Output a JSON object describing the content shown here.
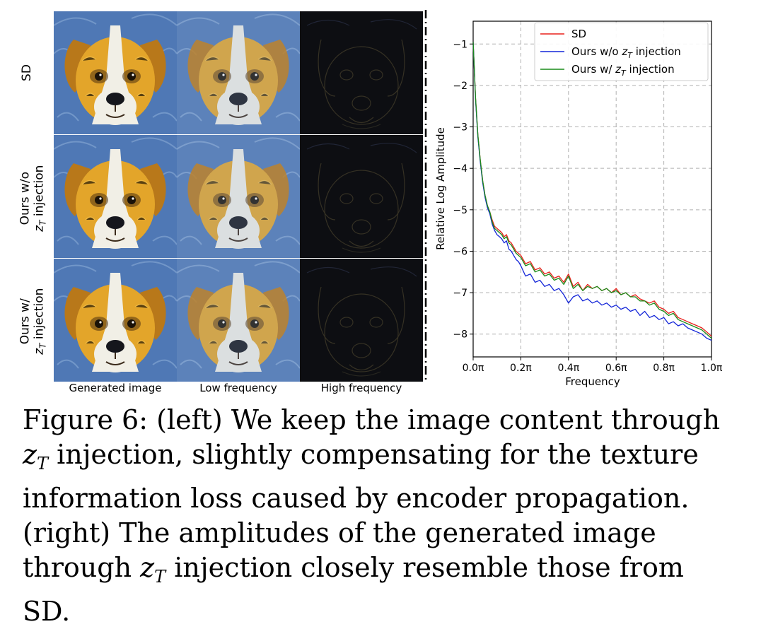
{
  "grid": {
    "row_labels": [
      {
        "line1": "SD",
        "line2": ""
      },
      {
        "line1": "Ours w/o",
        "line2": "z",
        "sub": "T",
        "tail": " injection"
      },
      {
        "line1": "Ours w/",
        "line2": "z",
        "sub": "T",
        "tail": " injection"
      }
    ],
    "col_labels": [
      "Generated image",
      "Low frequency",
      "High frequency"
    ]
  },
  "caption": {
    "prefix": "Figure 6: (left) We keep the image content through ",
    "math1": "z",
    "sub1": "T",
    "mid": " injection, slightly compensating for the texture information loss caused by encoder propagation. (right) The amplitudes of the generated image through ",
    "math2": "z",
    "sub2": "T",
    "suffix": " injection closely resemble those from SD."
  },
  "chart_data": {
    "type": "line",
    "xlabel": "Frequency",
    "ylabel": "Relative Log Amplitude",
    "xlim": [
      0,
      1
    ],
    "ylim": [
      -8.55,
      -0.45
    ],
    "xticks": [
      0,
      0.2,
      0.4,
      0.6,
      0.8,
      1.0
    ],
    "xtick_labels": [
      "0.0π",
      "0.2π",
      "0.4π",
      "0.6π",
      "0.8π",
      "1.0π"
    ],
    "yticks": [
      -1,
      -2,
      -3,
      -4,
      -5,
      -6,
      -7,
      -8
    ],
    "ytick_labels": [
      "−1",
      "−2",
      "−3",
      "−4",
      "−5",
      "−6",
      "−7",
      "−8"
    ],
    "grid": true,
    "legend": "top-right",
    "series": [
      {
        "name": "SD",
        "color": "#e8201b",
        "x": [
          0.0,
          0.01,
          0.02,
          0.03,
          0.04,
          0.05,
          0.06,
          0.07,
          0.08,
          0.09,
          0.1,
          0.11,
          0.12,
          0.13,
          0.14,
          0.15,
          0.16,
          0.17,
          0.18,
          0.19,
          0.2,
          0.22,
          0.24,
          0.26,
          0.28,
          0.3,
          0.32,
          0.34,
          0.36,
          0.38,
          0.4,
          0.42,
          0.44,
          0.46,
          0.48,
          0.5,
          0.52,
          0.54,
          0.56,
          0.58,
          0.6,
          0.62,
          0.64,
          0.66,
          0.68,
          0.7,
          0.72,
          0.74,
          0.76,
          0.78,
          0.8,
          0.82,
          0.84,
          0.86,
          0.88,
          0.9,
          0.92,
          0.94,
          0.96,
          0.98,
          1.0
        ],
        "y": [
          -0.95,
          -2.3,
          -3.2,
          -3.8,
          -4.3,
          -4.65,
          -4.9,
          -5.05,
          -5.25,
          -5.4,
          -5.45,
          -5.5,
          -5.55,
          -5.65,
          -5.6,
          -5.75,
          -5.8,
          -5.9,
          -6.0,
          -6.05,
          -6.1,
          -6.3,
          -6.25,
          -6.45,
          -6.4,
          -6.55,
          -6.5,
          -6.65,
          -6.6,
          -6.75,
          -6.55,
          -6.85,
          -6.75,
          -6.95,
          -6.8,
          -6.9,
          -6.85,
          -6.95,
          -6.9,
          -7.0,
          -6.9,
          -7.05,
          -7.0,
          -7.1,
          -7.05,
          -7.15,
          -7.2,
          -7.25,
          -7.2,
          -7.35,
          -7.4,
          -7.5,
          -7.45,
          -7.6,
          -7.65,
          -7.7,
          -7.75,
          -7.8,
          -7.85,
          -7.95,
          -8.05
        ]
      },
      {
        "name": "Ours w/o z_T injection",
        "label_main": "Ours w/o ",
        "label_math": "z",
        "label_sub": "T",
        "label_tail": " injection",
        "color": "#1426d8",
        "x": [
          0.0,
          0.01,
          0.02,
          0.03,
          0.04,
          0.05,
          0.06,
          0.07,
          0.08,
          0.09,
          0.1,
          0.11,
          0.12,
          0.13,
          0.14,
          0.15,
          0.16,
          0.17,
          0.18,
          0.19,
          0.2,
          0.22,
          0.24,
          0.26,
          0.28,
          0.3,
          0.32,
          0.34,
          0.36,
          0.38,
          0.4,
          0.42,
          0.44,
          0.46,
          0.48,
          0.5,
          0.52,
          0.54,
          0.56,
          0.58,
          0.6,
          0.62,
          0.64,
          0.66,
          0.68,
          0.7,
          0.72,
          0.74,
          0.76,
          0.78,
          0.8,
          0.82,
          0.84,
          0.86,
          0.88,
          0.9,
          0.92,
          0.94,
          0.96,
          0.98,
          1.0
        ],
        "y": [
          -0.95,
          -2.35,
          -3.25,
          -3.85,
          -4.35,
          -4.7,
          -4.95,
          -5.1,
          -5.35,
          -5.5,
          -5.6,
          -5.65,
          -5.7,
          -5.8,
          -5.75,
          -5.95,
          -6.0,
          -6.1,
          -6.2,
          -6.25,
          -6.35,
          -6.6,
          -6.55,
          -6.75,
          -6.7,
          -6.85,
          -6.8,
          -6.95,
          -6.9,
          -7.05,
          -7.25,
          -7.1,
          -7.05,
          -7.2,
          -7.15,
          -7.25,
          -7.2,
          -7.3,
          -7.25,
          -7.35,
          -7.3,
          -7.4,
          -7.35,
          -7.45,
          -7.4,
          -7.55,
          -7.45,
          -7.6,
          -7.55,
          -7.65,
          -7.6,
          -7.75,
          -7.7,
          -7.8,
          -7.75,
          -7.85,
          -7.9,
          -7.95,
          -8.0,
          -8.1,
          -8.15
        ]
      },
      {
        "name": "Ours w/ z_T injection",
        "label_main": "Ours w/ ",
        "label_math": "z",
        "label_sub": "T",
        "label_tail": " injection",
        "color": "#198c19",
        "x": [
          0.0,
          0.01,
          0.02,
          0.03,
          0.04,
          0.05,
          0.06,
          0.07,
          0.08,
          0.09,
          0.1,
          0.11,
          0.12,
          0.13,
          0.14,
          0.15,
          0.16,
          0.17,
          0.18,
          0.19,
          0.2,
          0.22,
          0.24,
          0.26,
          0.28,
          0.3,
          0.32,
          0.34,
          0.36,
          0.38,
          0.4,
          0.42,
          0.44,
          0.46,
          0.48,
          0.5,
          0.52,
          0.54,
          0.56,
          0.58,
          0.6,
          0.62,
          0.64,
          0.66,
          0.68,
          0.7,
          0.72,
          0.74,
          0.76,
          0.78,
          0.8,
          0.82,
          0.84,
          0.86,
          0.88,
          0.9,
          0.92,
          0.94,
          0.96,
          0.98,
          1.0
        ],
        "y": [
          -0.95,
          -2.3,
          -3.2,
          -3.8,
          -4.3,
          -4.65,
          -4.9,
          -5.05,
          -5.3,
          -5.45,
          -5.5,
          -5.55,
          -5.6,
          -5.7,
          -5.65,
          -5.8,
          -5.85,
          -5.95,
          -6.05,
          -6.1,
          -6.15,
          -6.35,
          -6.3,
          -6.5,
          -6.45,
          -6.6,
          -6.55,
          -6.7,
          -6.65,
          -6.8,
          -6.6,
          -6.9,
          -6.8,
          -6.95,
          -6.85,
          -6.9,
          -6.85,
          -6.95,
          -6.9,
          -7.0,
          -6.95,
          -7.05,
          -7.0,
          -7.1,
          -7.1,
          -7.2,
          -7.2,
          -7.3,
          -7.25,
          -7.4,
          -7.45,
          -7.55,
          -7.5,
          -7.65,
          -7.7,
          -7.75,
          -7.8,
          -7.85,
          -7.9,
          -8.0,
          -8.1
        ]
      }
    ]
  },
  "colors": {
    "fur": "#e3a52a",
    "fur_dark": "#b8781a",
    "background_blue": "#4f78b5",
    "white_fur": "#f1efe6"
  }
}
